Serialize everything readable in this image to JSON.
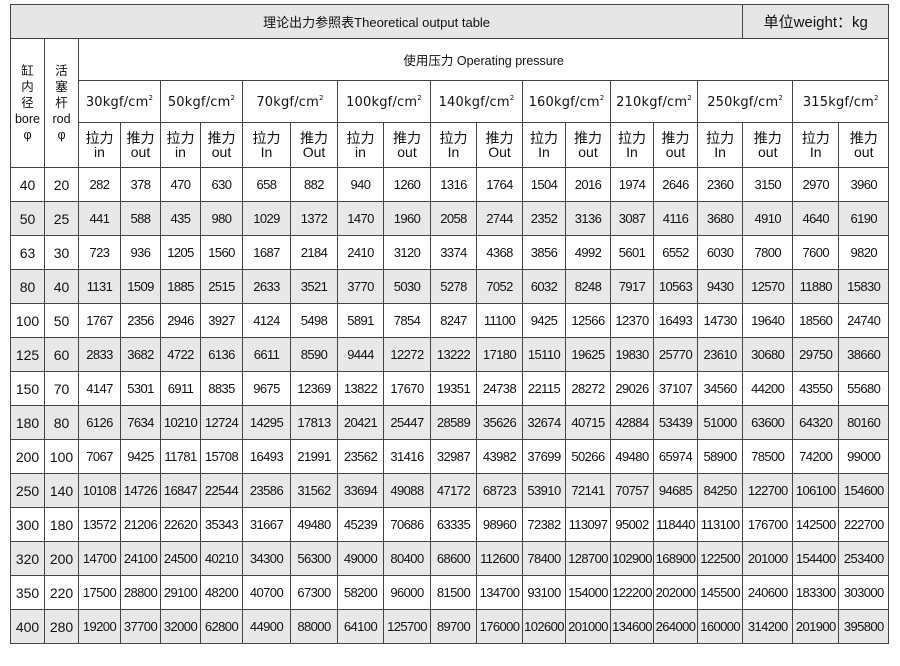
{
  "title": "理论出力参照表Theoretical  output table",
  "unit": "单位weight：kg",
  "bore_header": {
    "cn": [
      "缸",
      "内",
      "径"
    ],
    "en": "bore",
    "sym": "φ"
  },
  "rod_header": {
    "cn": [
      "活",
      "塞",
      "杆"
    ],
    "en": "rod",
    "sym": "φ"
  },
  "pressure_header": "使用压力 Operating pressure",
  "pressures": [
    {
      "label": "30kgf/cm",
      "sup": "2",
      "in_cn": "拉力",
      "in_en": "in",
      "out_cn": "推力",
      "out_en": "out"
    },
    {
      "label": "50kgf/cm",
      "sup": "2",
      "in_cn": "拉力",
      "in_en": "in",
      "out_cn": "推力",
      "out_en": "out"
    },
    {
      "label": "70kgf/cm",
      "sup": "2",
      "in_cn": "拉力",
      "in_en": "In",
      "out_cn": "推力",
      "out_en": "Out"
    },
    {
      "label": "100kgf/cm",
      "sup": "2",
      "in_cn": "拉力",
      "in_en": "in",
      "out_cn": "推力",
      "out_en": "out"
    },
    {
      "label": "140kgf/cm",
      "sup": "2",
      "in_cn": "拉力",
      "in_en": "In",
      "out_cn": "推力",
      "out_en": "Out"
    },
    {
      "label": "160kgf/cm",
      "sup": "2",
      "in_cn": "拉力",
      "in_en": "In",
      "out_cn": "推力",
      "out_en": "out"
    },
    {
      "label": "210kgf/cm",
      "sup": "2",
      "in_cn": "拉力",
      "in_en": "In",
      "out_cn": "推力",
      "out_en": "out"
    },
    {
      "label": "250kgf/cm",
      "sup": "2",
      "in_cn": "拉力",
      "in_en": "In",
      "out_cn": "推力",
      "out_en": "out"
    },
    {
      "label": "315kgf/cm",
      "sup": "2",
      "in_cn": "拉力",
      "in_en": "In",
      "out_cn": "推力",
      "out_en": "out"
    }
  ],
  "rows": [
    {
      "bore": "40",
      "rod": "20",
      "values": [
        "282",
        "378",
        "470",
        "630",
        "658",
        "882",
        "940",
        "1260",
        "1316",
        "1764",
        "1504",
        "2016",
        "1974",
        "2646",
        "2360",
        "3150",
        "2970",
        "3960"
      ]
    },
    {
      "bore": "50",
      "rod": "25",
      "values": [
        "441",
        "588",
        "435",
        "980",
        "1029",
        "1372",
        "1470",
        "1960",
        "2058",
        "2744",
        "2352",
        "3136",
        "3087",
        "4116",
        "3680",
        "4910",
        "4640",
        "6190"
      ]
    },
    {
      "bore": "63",
      "rod": "30",
      "values": [
        "723",
        "936",
        "1205",
        "1560",
        "1687",
        "2184",
        "2410",
        "3120",
        "3374",
        "4368",
        "3856",
        "4992",
        "5601",
        "6552",
        "6030",
        "7800",
        "7600",
        "9820"
      ]
    },
    {
      "bore": "80",
      "rod": "40",
      "values": [
        "1131",
        "1509",
        "1885",
        "2515",
        "2633",
        "3521",
        "3770",
        "5030",
        "5278",
        "7052",
        "6032",
        "8248",
        "7917",
        "10563",
        "9430",
        "12570",
        "11880",
        "15830"
      ]
    },
    {
      "bore": "100",
      "rod": "50",
      "values": [
        "1767",
        "2356",
        "2946",
        "3927",
        "4124",
        "5498",
        "5891",
        "7854",
        "8247",
        "11100",
        "9425",
        "12566",
        "12370",
        "16493",
        "14730",
        "19640",
        "18560",
        "24740"
      ]
    },
    {
      "bore": "125",
      "rod": "60",
      "values": [
        "2833",
        "3682",
        "4722",
        "6136",
        "6611",
        "8590",
        "9444",
        "12272",
        "13222",
        "17180",
        "15110",
        "19625",
        "19830",
        "25770",
        "23610",
        "30680",
        "29750",
        "38660"
      ]
    },
    {
      "bore": "150",
      "rod": "70",
      "values": [
        "4147",
        "5301",
        "6911",
        "8835",
        "9675",
        "12369",
        "13822",
        "17670",
        "19351",
        "24738",
        "22115",
        "28272",
        "29026",
        "37107",
        "34560",
        "44200",
        "43550",
        "55680"
      ]
    },
    {
      "bore": "180",
      "rod": "80",
      "values": [
        "6126",
        "7634",
        "10210",
        "12724",
        "14295",
        "17813",
        "20421",
        "25447",
        "28589",
        "35626",
        "32674",
        "40715",
        "42884",
        "53439",
        "51000",
        "63600",
        "64320",
        "80160"
      ]
    },
    {
      "bore": "200",
      "rod": "100",
      "values": [
        "7067",
        "9425",
        "11781",
        "15708",
        "16493",
        "21991",
        "23562",
        "31416",
        "32987",
        "43982",
        "37699",
        "50266",
        "49480",
        "65974",
        "58900",
        "78500",
        "74200",
        "99000"
      ]
    },
    {
      "bore": "250",
      "rod": "140",
      "values": [
        "10108",
        "14726",
        "16847",
        "22544",
        "23586",
        "31562",
        "33694",
        "49088",
        "47172",
        "68723",
        "53910",
        "72141",
        "70757",
        "94685",
        "84250",
        "122700",
        "106100",
        "154600"
      ]
    },
    {
      "bore": "300",
      "rod": "180",
      "values": [
        "13572",
        "21206",
        "22620",
        "35343",
        "31667",
        "49480",
        "45239",
        "70686",
        "63335",
        "98960",
        "72382",
        "113097",
        "95002",
        "118440",
        "113100",
        "176700",
        "142500",
        "222700"
      ]
    },
    {
      "bore": "320",
      "rod": "200",
      "values": [
        "14700",
        "24100",
        "24500",
        "40210",
        "34300",
        "56300",
        "49000",
        "80400",
        "68600",
        "112600",
        "78400",
        "128700",
        "102900",
        "168900",
        "122500",
        "201000",
        "154400",
        "253400"
      ]
    },
    {
      "bore": "350",
      "rod": "220",
      "values": [
        "17500",
        "28800",
        "29100",
        "48200",
        "40700",
        "67300",
        "58200",
        "96000",
        "81500",
        "134700",
        "93100",
        "154000",
        "122200",
        "202000",
        "145500",
        "240600",
        "183300",
        "303000"
      ]
    },
    {
      "bore": "400",
      "rod": "280",
      "values": [
        "19200",
        "37700",
        "32000",
        "62800",
        "44900",
        "88000",
        "64100",
        "125700",
        "89700",
        "176000",
        "102600",
        "201000",
        "134600",
        "264000",
        "160000",
        "314200",
        "201900",
        "395800"
      ]
    }
  ],
  "colors": {
    "border": "#444444",
    "header_bg": "#e6e6e6",
    "alt_row_bg": "#e8e8e8"
  }
}
